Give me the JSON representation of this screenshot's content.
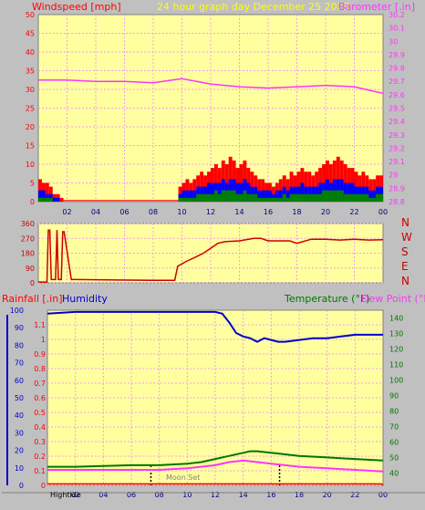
{
  "colors": {
    "bg": "#c0c0c0",
    "plot": "#ffffa0",
    "grid": "#f0a0f0",
    "wind": "#ff0000",
    "gust": "#0000ff",
    "windAvg": "#008000",
    "baro": "#ff33ff",
    "dir": "#cc0000",
    "humidity": "#0000cc",
    "temp": "#007700",
    "dew": "#ff33ff",
    "rain": "#ff0000",
    "title": "#ffff00",
    "sunline": "#000000"
  },
  "header": {
    "windspeed_label": "Windspeed [mph]",
    "title": "24 hour graph day   December 25 2023",
    "barometer_label": "Barometer [.in]"
  },
  "lower_header": {
    "rainfall_label": "Rainfall [.in]",
    "humidity_label": "Humidity",
    "temperature_label": "Temperature (°F)",
    "dewpoint_label": "Dew Point (°F)"
  },
  "compass": [
    "N",
    "W",
    "S",
    "E",
    "N"
  ],
  "footer": {
    "hightide": "Hightide",
    "moonset": "Moon Set"
  },
  "chart_data": [
    {
      "id": "wind-baro",
      "type": "bar",
      "x_ticks": [
        "02",
        "04",
        "06",
        "08",
        "10",
        "12",
        "14",
        "16",
        "18",
        "20",
        "22",
        "00"
      ],
      "x_range_hours": [
        0,
        24
      ],
      "y_left": {
        "ticks": [
          "0",
          "5",
          "10",
          "15",
          "20",
          "25",
          "30",
          "35",
          "40",
          "45",
          "50"
        ],
        "range": [
          0,
          50
        ]
      },
      "y_right": {
        "ticks": [
          "28.8",
          "28.9",
          "29",
          "29.1",
          "29.2",
          "29.3",
          "29.4",
          "29.5",
          "29.6",
          "29.7",
          "29.8",
          "29.9",
          "30",
          "30.1",
          "30.2"
        ],
        "range": [
          28.8,
          30.2
        ]
      },
      "series": [
        {
          "role": "gust",
          "values": [
            6,
            5,
            5,
            4,
            2,
            2,
            1,
            0,
            0,
            0,
            0,
            0,
            0,
            0,
            0,
            0,
            0,
            0,
            0,
            0,
            0,
            0,
            0,
            0,
            0,
            0,
            0,
            0,
            0,
            0,
            0,
            0,
            0,
            0,
            0,
            0,
            0,
            0,
            0,
            4,
            5,
            6,
            5,
            6,
            7,
            8,
            7,
            8,
            9,
            10,
            9,
            11,
            10,
            12,
            11,
            9,
            10,
            11,
            9,
            8,
            7,
            6,
            6,
            5,
            5,
            4,
            5,
            6,
            7,
            6,
            8,
            7,
            8,
            9,
            8,
            8,
            7,
            8,
            9,
            10,
            11,
            10,
            11,
            12,
            11,
            10,
            9,
            9,
            8,
            7,
            8,
            7,
            6,
            6,
            7,
            7
          ]
        },
        {
          "role": "wind",
          "values": [
            3,
            3,
            2,
            2,
            1,
            1,
            0,
            0,
            0,
            0,
            0,
            0,
            0,
            0,
            0,
            0,
            0,
            0,
            0,
            0,
            0,
            0,
            0,
            0,
            0,
            0,
            0,
            0,
            0,
            0,
            0,
            0,
            0,
            0,
            0,
            0,
            0,
            0,
            0,
            2,
            3,
            3,
            3,
            3,
            4,
            4,
            4,
            5,
            5,
            5,
            5,
            6,
            5,
            6,
            6,
            5,
            5,
            6,
            5,
            4,
            4,
            3,
            3,
            3,
            3,
            2,
            3,
            3,
            4,
            3,
            4,
            4,
            4,
            5,
            4,
            4,
            4,
            4,
            5,
            5,
            6,
            5,
            6,
            6,
            6,
            5,
            5,
            5,
            4,
            4,
            4,
            4,
            3,
            3,
            4,
            4
          ]
        },
        {
          "role": "average",
          "values": [
            1,
            1,
            1,
            1,
            0,
            0,
            0,
            0,
            0,
            0,
            0,
            0,
            0,
            0,
            0,
            0,
            0,
            0,
            0,
            0,
            0,
            0,
            0,
            0,
            0,
            0,
            0,
            0,
            0,
            0,
            0,
            0,
            0,
            0,
            0,
            0,
            0,
            0,
            0,
            1,
            1,
            1,
            1,
            1,
            2,
            2,
            2,
            2,
            2,
            3,
            2,
            3,
            3,
            3,
            3,
            2,
            2,
            3,
            2,
            2,
            2,
            1,
            1,
            1,
            1,
            1,
            1,
            1,
            2,
            1,
            2,
            2,
            2,
            2,
            2,
            2,
            2,
            2,
            2,
            3,
            3,
            3,
            3,
            3,
            3,
            2,
            2,
            2,
            2,
            2,
            2,
            2,
            1,
            1,
            2,
            2
          ]
        },
        {
          "role": "barometer",
          "x": [
            0,
            2,
            4,
            6,
            8,
            10,
            12,
            14,
            16,
            18,
            20,
            22,
            24
          ],
          "values": [
            29.71,
            29.71,
            29.7,
            29.7,
            29.69,
            29.72,
            29.68,
            29.66,
            29.65,
            29.66,
            29.67,
            29.66,
            29.61
          ]
        }
      ]
    },
    {
      "id": "direction",
      "type": "line",
      "y_ticks": [
        "0",
        "90",
        "180",
        "270",
        "360"
      ],
      "y_range": [
        0,
        360
      ],
      "x_range_hours": [
        0,
        24
      ],
      "series": [
        {
          "role": "direction",
          "x": [
            0,
            0.6,
            0.7,
            0.8,
            0.9,
            1.2,
            1.3,
            1.4,
            1.6,
            1.7,
            1.8,
            2.3,
            2.4,
            2.5,
            2.6,
            8,
            9.5,
            9.7,
            10.3,
            10.8,
            11.5,
            12,
            12.5,
            13,
            14,
            15,
            15.5,
            16,
            17.5,
            18,
            19,
            20,
            21,
            22,
            23,
            24
          ],
          "values": [
            5,
            5,
            320,
            320,
            20,
            20,
            320,
            20,
            20,
            310,
            310,
            20,
            20,
            20,
            20,
            15,
            15,
            100,
            130,
            150,
            180,
            210,
            240,
            250,
            255,
            270,
            270,
            255,
            255,
            240,
            265,
            265,
            260,
            265,
            260,
            262
          ]
        }
      ]
    },
    {
      "id": "lower",
      "type": "line",
      "x_ticks": [
        "02",
        "04",
        "06",
        "08",
        "10",
        "12",
        "14",
        "16",
        "18",
        "20",
        "22",
        "00"
      ],
      "x_range_hours": [
        0,
        24
      ],
      "y_left_humidity": {
        "ticks": [
          "0",
          "10",
          "20",
          "30",
          "40",
          "50",
          "60",
          "70",
          "80",
          "90",
          "100"
        ],
        "range": [
          0,
          100
        ]
      },
      "y_left_rain": {
        "ticks": [
          "0",
          "0.1",
          "0.2",
          "0.3",
          "0.4",
          "0.5",
          "0.6",
          "0.7",
          "0.8",
          "0.9",
          "1",
          "1.1"
        ],
        "range": [
          0,
          1.2
        ]
      },
      "y_right": {
        "ticks": [
          "40",
          "50",
          "60",
          "70",
          "80",
          "90",
          "100",
          "110",
          "120",
          "130",
          "140"
        ],
        "range": [
          32,
          145
        ]
      },
      "series": [
        {
          "role": "humidity",
          "x": [
            0,
            2,
            4,
            6,
            8,
            10,
            12,
            12.5,
            13,
            13.5,
            14,
            14.5,
            15,
            15.5,
            16,
            16.5,
            17,
            18,
            19,
            20,
            21,
            22,
            23,
            24
          ],
          "values": [
            98,
            99,
            99,
            99,
            99,
            99,
            99,
            98,
            93,
            87,
            85,
            84,
            82,
            84,
            83,
            82,
            82,
            83,
            84,
            84,
            85,
            86,
            86,
            86
          ]
        },
        {
          "role": "temperature",
          "x": [
            0,
            2,
            4,
            6,
            8,
            10,
            11,
            12,
            13,
            14,
            14.5,
            15,
            16,
            17,
            18,
            20,
            22,
            24
          ],
          "values": [
            44,
            44,
            44.5,
            45,
            45,
            46,
            47,
            49,
            51,
            53,
            54,
            54,
            53,
            52,
            51,
            50,
            49,
            48
          ]
        },
        {
          "role": "dewpoint",
          "x": [
            0,
            2,
            4,
            6,
            8,
            10,
            11,
            12,
            13,
            14,
            15,
            16,
            17,
            18,
            20,
            22,
            24
          ],
          "values": [
            42,
            42,
            42,
            42,
            42,
            43,
            44,
            45,
            47,
            48,
            47,
            46,
            45,
            44,
            43,
            42,
            41
          ]
        },
        {
          "role": "rainfall",
          "x": [
            0,
            23.9,
            24
          ],
          "values": [
            0.01,
            0.01,
            0
          ]
        }
      ],
      "markers": [
        {
          "hour": 7.4
        },
        {
          "hour": 16.6
        }
      ]
    }
  ]
}
